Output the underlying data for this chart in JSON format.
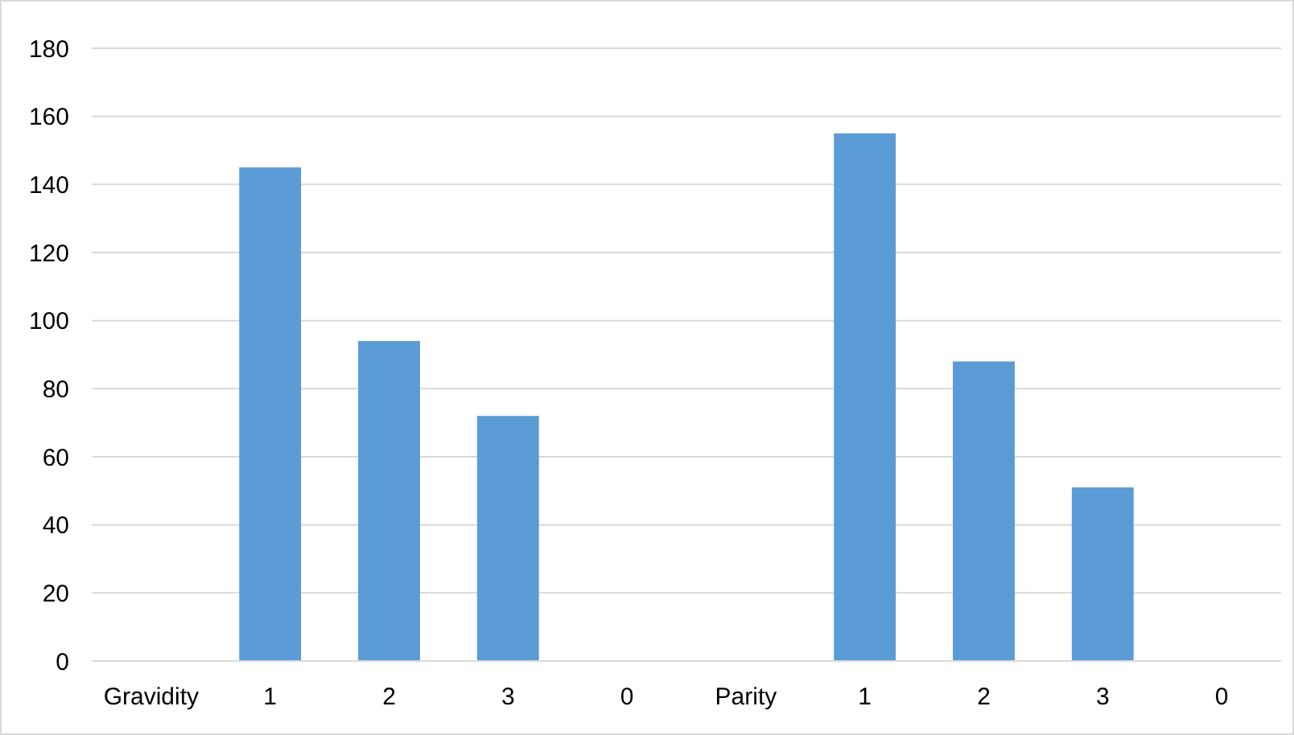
{
  "chart_data": {
    "type": "bar",
    "categories": [
      "Gravidity",
      "1",
      "2",
      "3",
      "0",
      "Parity",
      "1",
      "2",
      "3",
      "0"
    ],
    "values": [
      null,
      145,
      94,
      72,
      0,
      null,
      155,
      88,
      51,
      0
    ],
    "color": "#5b9bd5",
    "ylim": [
      0,
      180
    ],
    "yticks": [
      0,
      20,
      40,
      60,
      80,
      100,
      120,
      140,
      160,
      180
    ],
    "grid": "y"
  }
}
